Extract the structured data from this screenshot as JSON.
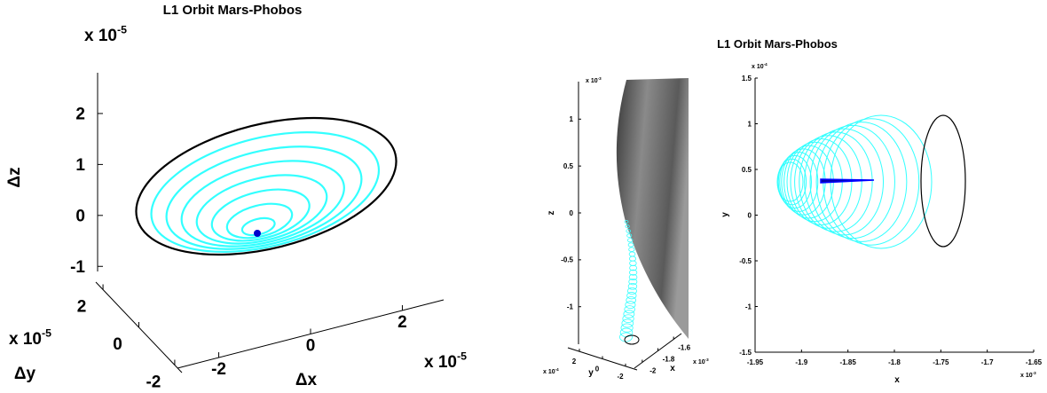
{
  "chart_data": [
    {
      "type": "line3d",
      "title": "L1 Orbit Mars-Phobos",
      "xlabel": "Δx",
      "ylabel": "Δy",
      "zlabel": "Δz",
      "xlim": [
        -2.9,
        2.9
      ],
      "xticks": [
        -2,
        0,
        2
      ],
      "ylim": [
        -2.4,
        2.4
      ],
      "yticks": [
        -2,
        0,
        2
      ],
      "zlim": [
        -1.1,
        2.8
      ],
      "zticks": [
        -1,
        0,
        1,
        2
      ],
      "x_multiplier": {
        "base": "x 10",
        "power": "-5"
      },
      "y_multiplier": {
        "base": "x 10",
        "power": "-5"
      },
      "z_multiplier": {
        "base": "x 10",
        "power": "-5"
      }
    },
    {
      "type": "line3d",
      "xlabel": "x",
      "ylabel": "y",
      "zlabel": "z",
      "xlim": [
        -2.1,
        -1.5
      ],
      "xticks": [
        -2,
        -1.8,
        -1.6
      ],
      "ylim": [
        -3,
        3
      ],
      "yticks": [
        -2,
        0,
        2
      ],
      "zlim": [
        -1.4,
        1.4
      ],
      "zticks": [
        -1,
        -0.5,
        0,
        0.5,
        1
      ],
      "x_multiplier": {
        "base": "x 10",
        "power": "-3"
      },
      "y_multiplier": {
        "base": "x 10",
        "power": "-4"
      },
      "z_multiplier": {
        "base": "x 10",
        "power": "-3"
      }
    },
    {
      "type": "line",
      "title": "L1 Orbit Mars-Phobos",
      "xlabel": "x",
      "ylabel": "y",
      "xlim": [
        -1.95,
        -1.65
      ],
      "xticks": [
        -1.95,
        -1.9,
        -1.85,
        -1.8,
        -1.75,
        -1.7,
        -1.65
      ],
      "ylim": [
        -1.5,
        1.5
      ],
      "yticks": [
        -1.5,
        -1,
        -0.5,
        0,
        0.5,
        1,
        1.5
      ],
      "x_multiplier": {
        "base": "x 10",
        "power": "-3"
      },
      "y_multiplier": {
        "base": "x 10",
        "power": "-4"
      }
    }
  ]
}
